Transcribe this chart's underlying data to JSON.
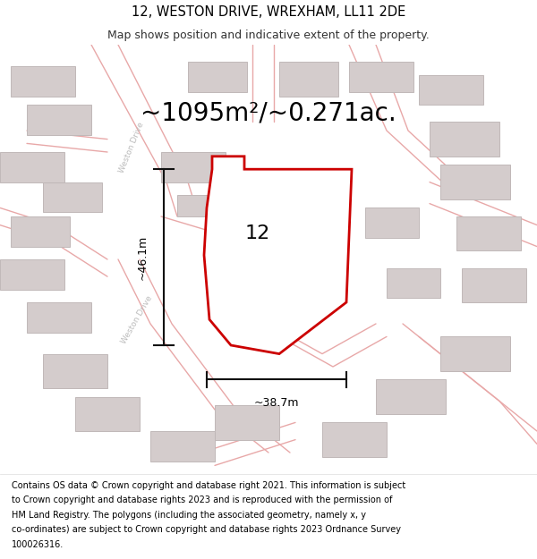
{
  "title": "12, WESTON DRIVE, WREXHAM, LL11 2DE",
  "subtitle": "Map shows position and indicative extent of the property.",
  "area_label": "~1095m²/~0.271ac.",
  "property_number": "12",
  "dim_height": "~46.1m",
  "dim_width": "~38.7m",
  "footer_lines": [
    "Contains OS data © Crown copyright and database right 2021. This information is subject",
    "to Crown copyright and database rights 2023 and is reproduced with the permission of",
    "HM Land Registry. The polygons (including the associated geometry, namely x, y",
    "co-ordinates) are subject to Crown copyright and database rights 2023 Ordnance Survey",
    "100026316."
  ],
  "map_bg": "#f7f3f3",
  "road_color": "#e8a8a8",
  "building_color": "#d4cccc",
  "building_edge": "#c0b8b8",
  "property_fill": "#ffffff",
  "property_edge": "#cc0000",
  "dim_line_color": "#111111",
  "title_fontsize": 10.5,
  "subtitle_fontsize": 9,
  "area_fontsize": 20,
  "label_fontsize": 16,
  "footer_fontsize": 7.0,
  "road_lw": 1.0,
  "prop_lw": 2.0
}
